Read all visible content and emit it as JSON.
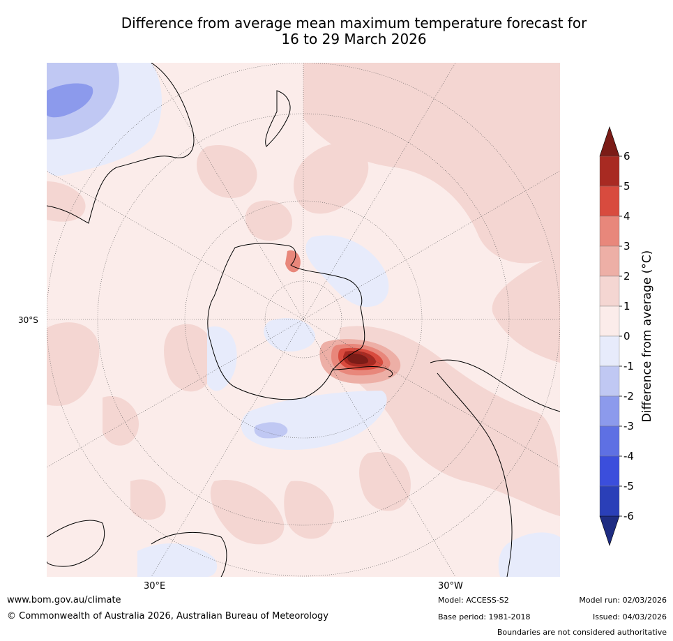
{
  "title": {
    "line1": "Difference from average mean maximum temperature forecast for",
    "line2": "16 to 29 March 2026"
  },
  "map": {
    "latitude_label": "30°S",
    "longitude_labels": [
      "30°E",
      "30°W"
    ],
    "projection": "south polar stereographic"
  },
  "colorbar": {
    "title": "Difference from average (°C)",
    "ticks": [
      "6",
      "5",
      "4",
      "3",
      "2",
      "1",
      "0",
      "-1",
      "-2",
      "-3",
      "-4",
      "-5",
      "-6"
    ],
    "colors": [
      "#7b1c17",
      "#a82a22",
      "#d84b3e",
      "#e8877b",
      "#edafa6",
      "#f4d6d2",
      "#fbecea",
      "#e7ebfb",
      "#c0c8f3",
      "#8c9aec",
      "#5e70e3",
      "#3b4edc",
      "#2a3fb8",
      "#1e2c82"
    ]
  },
  "footer": {
    "url": "www.bom.gov.au/climate",
    "copyright": "© Commonwealth of Australia 2026, Australian Bureau of Meteorology",
    "model": "Model: ACCESS-S2",
    "base_period": "Base period: 1981-2018",
    "model_run": "Model run: 02/03/2026",
    "issued": "Issued: 04/03/2026",
    "disclaimer": "Boundaries are not considered authoritative"
  }
}
